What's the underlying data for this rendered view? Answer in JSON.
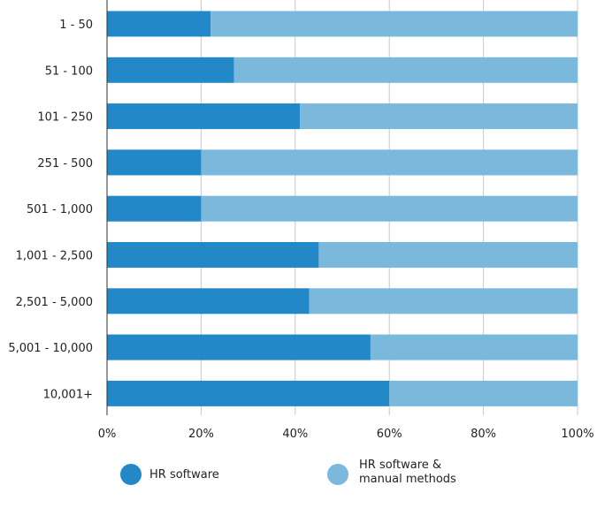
{
  "chart_data": {
    "type": "bar",
    "orientation": "horizontal",
    "stacked": true,
    "categories": [
      "1 - 50",
      "51 - 100",
      "101 - 250",
      "251 - 500",
      "501 - 1,000",
      "1,001 - 2,500",
      "2,501 - 5,000",
      "5,001 - 10,000",
      "10,001+"
    ],
    "series": [
      {
        "name": "HR software",
        "color": "#2288c8",
        "values": [
          22,
          27,
          41,
          20,
          20,
          45,
          43,
          56,
          60
        ]
      },
      {
        "name": "HR software & manual methods",
        "color": "#7ab9db",
        "values": [
          78,
          73,
          59,
          80,
          80,
          55,
          57,
          44,
          40
        ]
      }
    ],
    "xlim": [
      0,
      100
    ],
    "xticks": [
      "0%",
      "20%",
      "40%",
      "60%",
      "80%",
      "100%"
    ],
    "grid": true,
    "legend": {
      "placement": "bottom",
      "items": [
        {
          "line1": "HR software",
          "line2": ""
        },
        {
          "line1": "HR software &",
          "line2": "manual methods"
        }
      ]
    }
  }
}
